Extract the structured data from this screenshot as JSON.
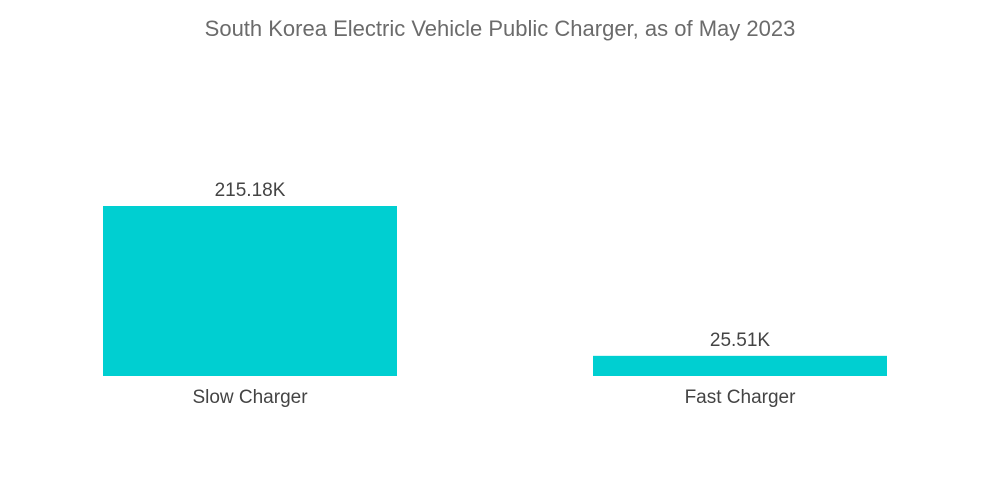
{
  "chart_data": {
    "type": "bar",
    "title": "South Korea Electric Vehicle Public Charger, as of May 2023",
    "categories": [
      "Slow Charger",
      "Fast Charger"
    ],
    "values": [
      215.18,
      25.51
    ],
    "value_labels": [
      "215.18K",
      "25.51K"
    ],
    "unit": "K",
    "xlabel": "",
    "ylabel": "",
    "ylim": [
      0,
      215.18
    ],
    "grid": false,
    "legend": "none",
    "bar_color": "#00cfd1"
  },
  "colors": {
    "bar": "#00cfd1",
    "title_text": "#6b6b6b",
    "label_text": "#444444"
  }
}
